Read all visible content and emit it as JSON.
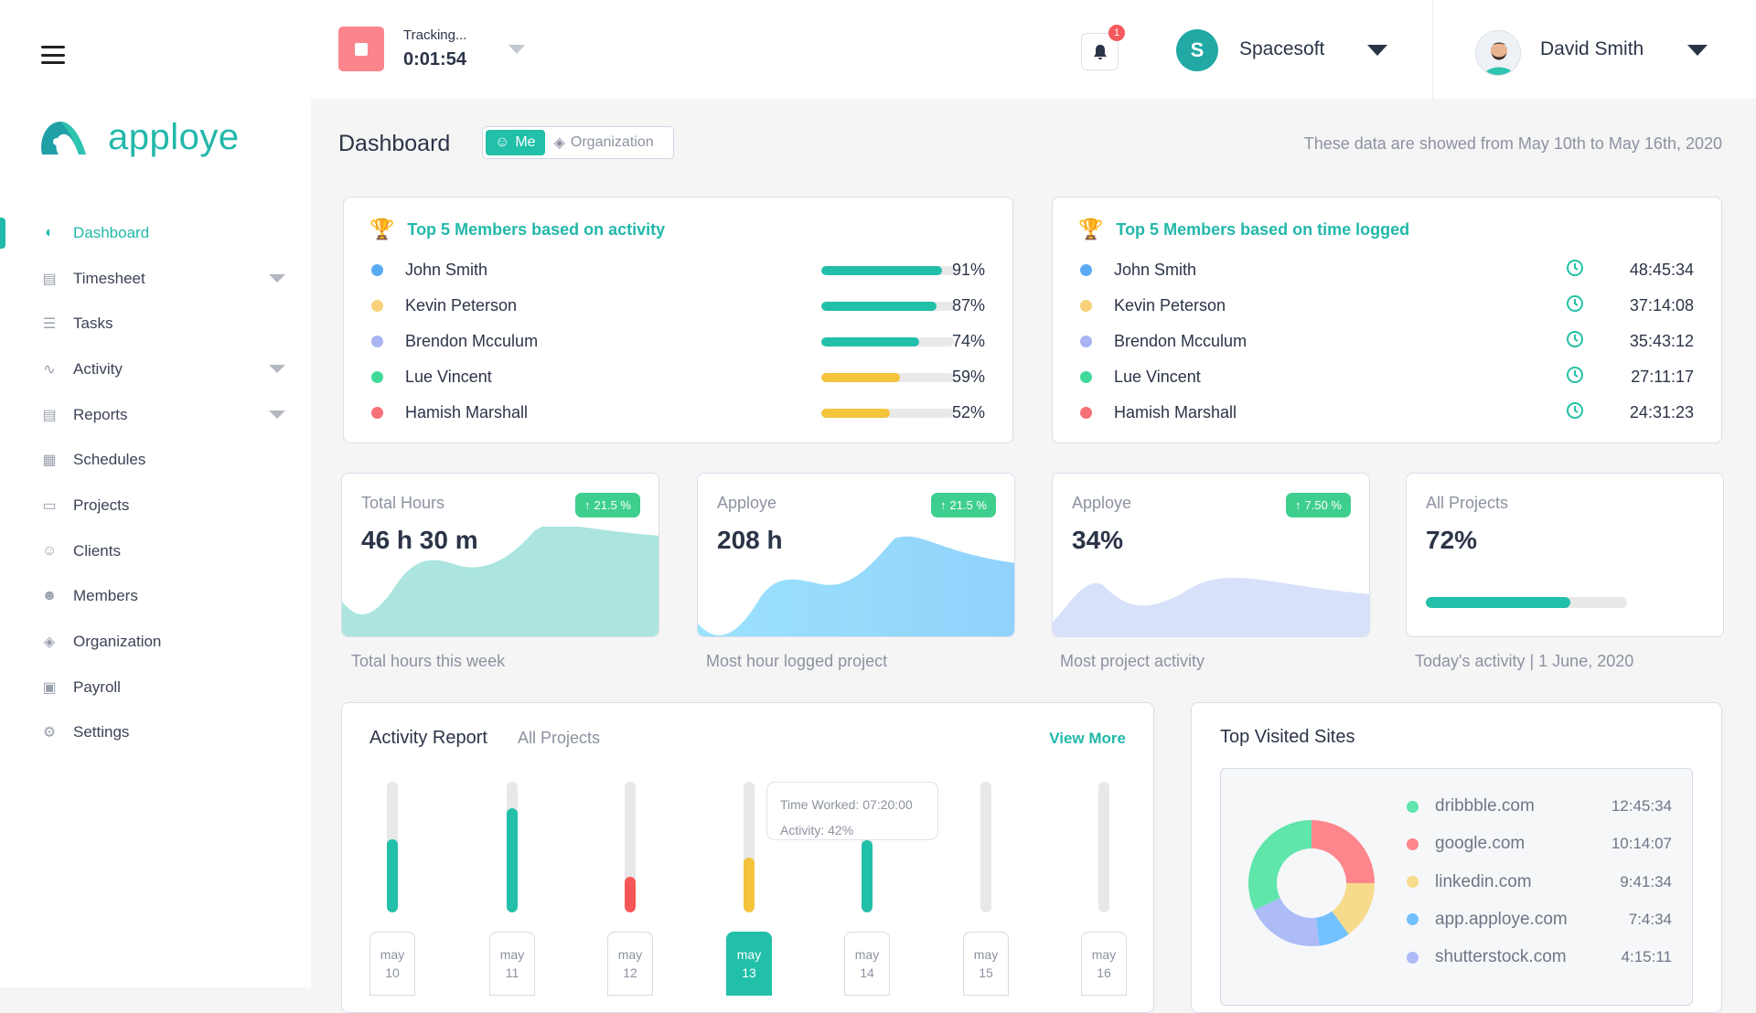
{
  "app": {
    "name": "apploye"
  },
  "sidebar": {
    "items": [
      {
        "label": "Dashboard",
        "icon": "gauge-icon",
        "active": true
      },
      {
        "label": "Timesheet",
        "icon": "timesheet-icon",
        "expandable": true
      },
      {
        "label": "Tasks",
        "icon": "list-icon"
      },
      {
        "label": "Activity",
        "icon": "pulse-icon",
        "expandable": true
      },
      {
        "label": "Reports",
        "icon": "document-icon",
        "expandable": true
      },
      {
        "label": "Schedules",
        "icon": "calendar-icon"
      },
      {
        "label": "Projects",
        "icon": "file-icon"
      },
      {
        "label": "Clients",
        "icon": "client-icon"
      },
      {
        "label": "Members",
        "icon": "members-icon"
      },
      {
        "label": "Organization",
        "icon": "org-icon"
      },
      {
        "label": "Payroll",
        "icon": "wallet-icon"
      },
      {
        "label": "Settings",
        "icon": "gear-icon"
      }
    ]
  },
  "header": {
    "tracking_label": "Tracking...",
    "timer": "0:01:54",
    "notifications": "1",
    "org_initial": "S",
    "org_name": "Spacesoft",
    "user_name": "David Smith"
  },
  "page": {
    "title": "Dashboard",
    "toggle": {
      "me": "Me",
      "organization": "Organization"
    },
    "date_range": "These data are showed from May 10th to May 16th, 2020"
  },
  "top_activity": {
    "title": "Top 5 Members based on activity",
    "members": [
      {
        "name": "John Smith",
        "color": "#5aabf5",
        "percent": "91%",
        "value": 91,
        "bar_color": "#22bfa9"
      },
      {
        "name": "Kevin Peterson",
        "color": "#f7d27a",
        "percent": "87%",
        "value": 87,
        "bar_color": "#22bfa9"
      },
      {
        "name": "Brendon Mcculum",
        "color": "#a9b4f3",
        "percent": "74%",
        "value": 74,
        "bar_color": "#22bfa9"
      },
      {
        "name": "Lue Vincent",
        "color": "#41d99a",
        "percent": "59%",
        "value": 59,
        "bar_color": "#f3c43c"
      },
      {
        "name": "Hamish Marshall",
        "color": "#f67177",
        "percent": "52%",
        "value": 52,
        "bar_color": "#f3c43c"
      }
    ]
  },
  "top_time": {
    "title": "Top 5 Members based on time logged",
    "members": [
      {
        "name": "John Smith",
        "color": "#5aabf5",
        "time": "48:45:34"
      },
      {
        "name": "Kevin Peterson",
        "color": "#f7d27a",
        "time": "37:14:08"
      },
      {
        "name": "Brendon Mcculum",
        "color": "#a9b4f3",
        "time": "35:43:12"
      },
      {
        "name": "Lue Vincent",
        "color": "#41d99a",
        "time": "27:11:17"
      },
      {
        "name": "Hamish Marshall",
        "color": "#f67177",
        "time": "24:31:23"
      }
    ]
  },
  "stats": [
    {
      "label": "Total Hours",
      "value": "46 h 30 m",
      "change": "21.5 %",
      "caption": "Total hours this week"
    },
    {
      "label": "Apploye",
      "value": "208 h",
      "change": "21.5 %",
      "caption": "Most hour logged project"
    },
    {
      "label": "Apploye",
      "value": "34%",
      "change": "7.50 %",
      "caption": "Most project activity"
    },
    {
      "label": "All Projects",
      "value": "72%",
      "progress": 72,
      "caption": "Today's activity | 1 June, 2020"
    }
  ],
  "activity_report": {
    "title": "Activity Report",
    "filter": "All Projects",
    "view_more": "View More",
    "days": [
      {
        "month": "may",
        "day": "10",
        "activity": 56,
        "color": "#22bfa9"
      },
      {
        "month": "may",
        "day": "11",
        "activity": 80,
        "color": "#22bfa9"
      },
      {
        "month": "may",
        "day": "12",
        "activity": 27,
        "color": "#f85656"
      },
      {
        "month": "may",
        "day": "13",
        "activity": 42,
        "color": "#f3c43c",
        "selected": true
      },
      {
        "month": "may",
        "day": "14",
        "activity": 55,
        "color": "#22bfa9"
      },
      {
        "month": "may",
        "day": "15",
        "activity": 0,
        "color": "#22bfa9"
      },
      {
        "month": "may",
        "day": "16",
        "activity": 0,
        "color": "#22bfa9"
      }
    ],
    "tooltip": {
      "time": "Time Worked: 07:20:00",
      "activity": "Activity: 42%"
    }
  },
  "top_sites": {
    "title": "Top Visited Sites",
    "sites": [
      {
        "name": "dribbble.com",
        "time": "12:45:34",
        "color": "#60e5ab",
        "share": 32
      },
      {
        "name": "google.com",
        "time": "10:14:07",
        "color": "#fc868b",
        "share": 25
      },
      {
        "name": "linkedin.com",
        "time": "9:41:34",
        "color": "#f7db8d",
        "share": 15
      },
      {
        "name": "app.apploye.com",
        "time": "7:4:34",
        "color": "#72c1fe",
        "share": 8
      },
      {
        "name": "shutterstock.com",
        "time": "4:15:11",
        "color": "#adbbf7",
        "share": 20
      }
    ]
  }
}
